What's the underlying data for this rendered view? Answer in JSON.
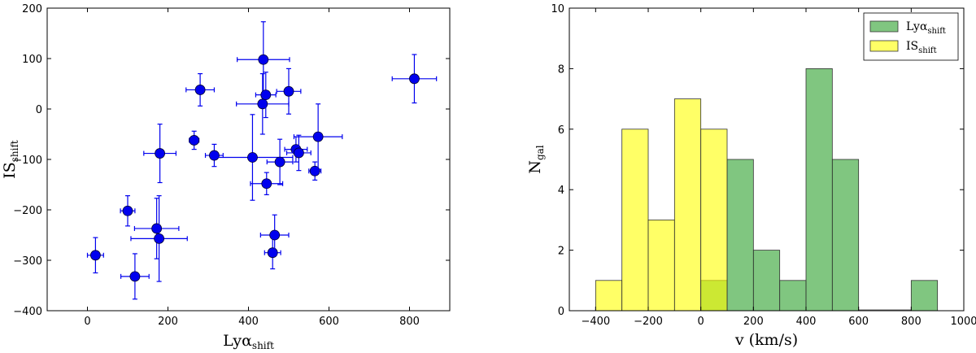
{
  "chart_data": [
    {
      "type": "scatter",
      "xlabel": {
        "main": "Lyα",
        "sub": "shift"
      },
      "ylabel": {
        "main": "IS",
        "sub": "shift"
      },
      "xlim": [
        -100,
        900
      ],
      "ylim": [
        -400,
        200
      ],
      "xticks": [
        "0",
        "200",
        "400",
        "600",
        "800"
      ],
      "yticks": [
        "−400",
        "−300",
        "−200",
        "−100",
        "0",
        "100",
        "200"
      ],
      "xtick_values": [
        0,
        200,
        400,
        600,
        800
      ],
      "ytick_values": [
        -400,
        -300,
        -200,
        -100,
        0,
        100,
        200
      ],
      "marker_color": "#0000ee",
      "points": [
        {
          "x": 20,
          "y": -290,
          "xerr": 20,
          "yerr": 35
        },
        {
          "x": 100,
          "y": -202,
          "xerr": 18,
          "yerr": 30
        },
        {
          "x": 118,
          "y": -332,
          "xerr": 35,
          "yerr": 45
        },
        {
          "x": 172,
          "y": -237,
          "xerr": 55,
          "yerr": 60
        },
        {
          "x": 178,
          "y": -257,
          "xerr": 70,
          "yerr": 85
        },
        {
          "x": 180,
          "y": -88,
          "xerr": 40,
          "yerr": 58
        },
        {
          "x": 265,
          "y": -62,
          "xerr": 12,
          "yerr": 18
        },
        {
          "x": 280,
          "y": 38,
          "xerr": 35,
          "yerr": 32
        },
        {
          "x": 315,
          "y": -92,
          "xerr": 22,
          "yerr": 22
        },
        {
          "x": 410,
          "y": -96,
          "xerr": 100,
          "yerr": 85
        },
        {
          "x": 435,
          "y": 10,
          "xerr": 65,
          "yerr": 60
        },
        {
          "x": 437,
          "y": 98,
          "xerr": 65,
          "yerr": 75
        },
        {
          "x": 443,
          "y": 28,
          "xerr": 25,
          "yerr": 45
        },
        {
          "x": 445,
          "y": -148,
          "xerr": 40,
          "yerr": 22
        },
        {
          "x": 460,
          "y": -285,
          "xerr": 20,
          "yerr": 32
        },
        {
          "x": 465,
          "y": -250,
          "xerr": 35,
          "yerr": 40
        },
        {
          "x": 478,
          "y": -105,
          "xerr": 32,
          "yerr": 45
        },
        {
          "x": 500,
          "y": 35,
          "xerr": 30,
          "yerr": 45
        },
        {
          "x": 518,
          "y": -80,
          "xerr": 28,
          "yerr": 25
        },
        {
          "x": 525,
          "y": -87,
          "xerr": 30,
          "yerr": 35
        },
        {
          "x": 565,
          "y": -123,
          "xerr": 15,
          "yerr": 18
        },
        {
          "x": 573,
          "y": -55,
          "xerr": 60,
          "yerr": 65
        },
        {
          "x": 812,
          "y": 60,
          "xerr": 55,
          "yerr": 48
        }
      ]
    },
    {
      "type": "histogram",
      "xlabel": "v (km/s)",
      "ylabel": {
        "main": "N",
        "sub": "gal"
      },
      "xlim": [
        -500,
        1000
      ],
      "ylim": [
        0,
        10
      ],
      "xticks": [
        "−400",
        "−200",
        "0",
        "200",
        "400",
        "600",
        "800",
        "1000"
      ],
      "yticks": [
        "0",
        "2",
        "4",
        "6",
        "8",
        "10"
      ],
      "xtick_values": [
        -400,
        -200,
        0,
        200,
        400,
        600,
        800,
        1000
      ],
      "ytick_values": [
        0,
        2,
        4,
        6,
        8,
        10
      ],
      "legend_position": "top-right",
      "series": [
        {
          "name": {
            "main": "Lyα",
            "sub": "shift"
          },
          "color": "#2ca02c",
          "bins": [
            [
              0,
              100,
              1
            ],
            [
              100,
              200,
              5
            ],
            [
              200,
              300,
              2
            ],
            [
              300,
              400,
              1
            ],
            [
              400,
              500,
              8
            ],
            [
              500,
              600,
              5
            ],
            [
              800,
              900,
              1
            ]
          ]
        },
        {
          "name": {
            "main": "IS",
            "sub": "shift"
          },
          "color": "#ffff00",
          "bins": [
            [
              -400,
              -300,
              1
            ],
            [
              -300,
              -200,
              6
            ],
            [
              -200,
              -100,
              3
            ],
            [
              -100,
              0,
              7
            ],
            [
              0,
              100,
              6
            ]
          ]
        }
      ]
    }
  ]
}
